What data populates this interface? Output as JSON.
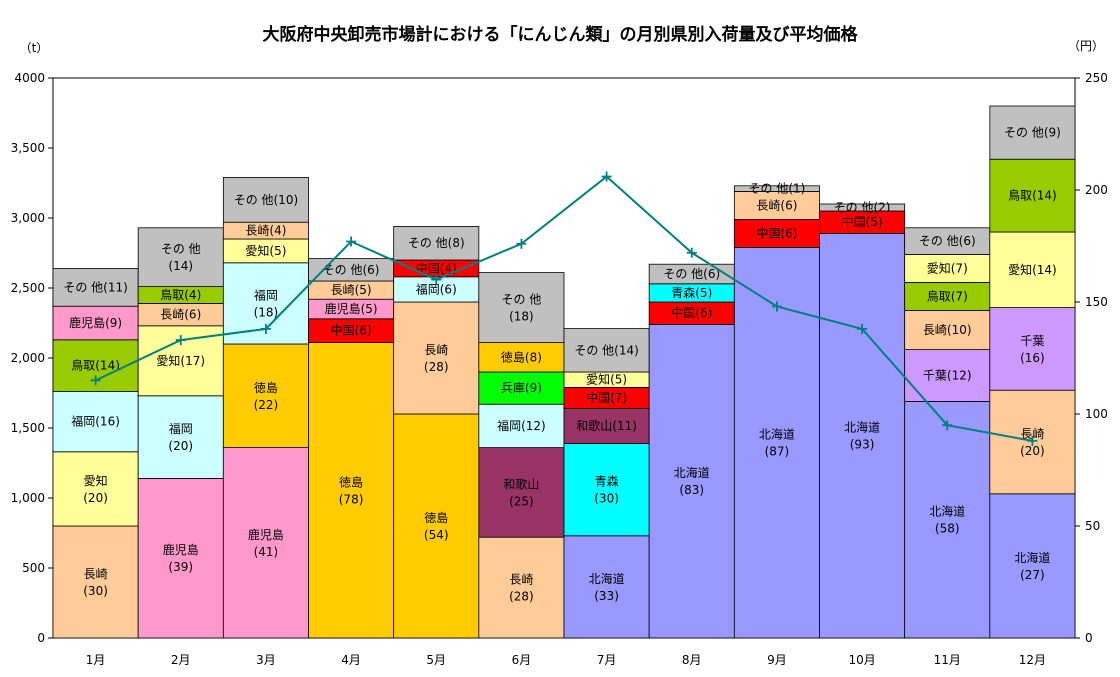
{
  "chart_data": {
    "type": "stacked-bar-with-line",
    "title": "大阪府中央卸売市場計における「にんじん類」の月別県別入荷量及び平均価格",
    "left_unit": "（t）",
    "right_unit": "（円）",
    "ylim_left": [
      0,
      4000
    ],
    "ylim_right": [
      0,
      250
    ],
    "yticks_left": [
      "0",
      "500",
      "1,000",
      "1,500",
      "2,000",
      "2,500",
      "3,000",
      "3,500",
      "4000"
    ],
    "yticks_right": [
      "0",
      "50",
      "100",
      "150",
      "200",
      "250"
    ],
    "months": [
      "1月",
      "2月",
      "3月",
      "4月",
      "5月",
      "6月",
      "7月",
      "8月",
      "9月",
      "10月",
      "11月",
      "12月"
    ],
    "colors": {
      "長崎": "#ffcc99",
      "愛知": "#ffff99",
      "福岡": "#ccffff",
      "鳥取": "#99cc00",
      "鹿児島": "#ff99cc",
      "その他": "#c0c0c0",
      "徳島": "#ffcc00",
      "中国": "#ff0000",
      "和歌山": "#993366",
      "兵庫": "#00ff00",
      "青森": "#00ffff",
      "北海道": "#9999ff",
      "千葉": "#cc99ff",
      "line": "#008080"
    },
    "bars": [
      {
        "segments": [
          {
            "name": "長崎",
            "value": 800,
            "label": "長崎",
            "sub": "(30)"
          },
          {
            "name": "愛知",
            "value": 530,
            "label": "愛知",
            "sub": "(20)"
          },
          {
            "name": "福岡",
            "value": 430,
            "label": "福岡(16)"
          },
          {
            "name": "鳥取",
            "value": 370,
            "label": "鳥取(14)"
          },
          {
            "name": "鹿児島",
            "value": 240,
            "label": "鹿児島(9)"
          },
          {
            "name": "その他",
            "value": 270,
            "label": "その 他(11)"
          }
        ]
      },
      {
        "segments": [
          {
            "name": "鹿児島",
            "value": 1140,
            "label": "鹿児島",
            "sub": "(39)"
          },
          {
            "name": "福岡",
            "value": 590,
            "label": "福岡",
            "sub": "(20)"
          },
          {
            "name": "愛知",
            "value": 500,
            "label": "愛知(17)"
          },
          {
            "name": "長崎",
            "value": 160,
            "label": "長崎(6)"
          },
          {
            "name": "鳥取",
            "value": 120,
            "label": "鳥取(4)"
          },
          {
            "name": "その他",
            "value": 420,
            "label": "その 他",
            "sub": "(14)"
          }
        ]
      },
      {
        "segments": [
          {
            "name": "鹿児島",
            "value": 1360,
            "label": "鹿児島",
            "sub": "(41)"
          },
          {
            "name": "徳島",
            "value": 740,
            "label": "徳島",
            "sub": "(22)"
          },
          {
            "name": "福岡",
            "value": 580,
            "label": "福岡",
            "sub": "(18)"
          },
          {
            "name": "愛知",
            "value": 170,
            "label": "愛知(5)"
          },
          {
            "name": "長崎",
            "value": 120,
            "label": "長崎(4)"
          },
          {
            "name": "その他",
            "value": 320,
            "label": "その 他(10)"
          }
        ]
      },
      {
        "segments": [
          {
            "name": "徳島",
            "value": 2110,
            "label": "徳島",
            "sub": "(78)"
          },
          {
            "name": "中国",
            "value": 170,
            "label": "中国(6)"
          },
          {
            "name": "鹿児島",
            "value": 140,
            "label": "鹿児島(5)"
          },
          {
            "name": "長崎",
            "value": 130,
            "label": "長崎(5)"
          },
          {
            "name": "その他",
            "value": 160,
            "label": "その 他(6)"
          }
        ]
      },
      {
        "segments": [
          {
            "name": "徳島",
            "value": 1600,
            "label": "徳島",
            "sub": "(54)"
          },
          {
            "name": "長崎",
            "value": 800,
            "label": "長崎",
            "sub": "(28)"
          },
          {
            "name": "福岡",
            "value": 180,
            "label": "福岡(6)"
          },
          {
            "name": "中国",
            "value": 120,
            "label": "中国(4)"
          },
          {
            "name": "その他",
            "value": 240,
            "label": "その 他(8)"
          }
        ]
      },
      {
        "segments": [
          {
            "name": "長崎",
            "value": 720,
            "label": "長崎",
            "sub": "(28)"
          },
          {
            "name": "和歌山",
            "value": 640,
            "label": "和歌山",
            "sub": "(25)"
          },
          {
            "name": "福岡",
            "value": 310,
            "label": "福岡(12)"
          },
          {
            "name": "兵庫",
            "value": 230,
            "label": "兵庫(9)"
          },
          {
            "name": "徳島",
            "value": 210,
            "label": "徳島(8)"
          },
          {
            "name": "その他",
            "value": 500,
            "label": "その 他",
            "sub": "(18)"
          }
        ]
      },
      {
        "segments": [
          {
            "name": "北海道",
            "value": 730,
            "label": "北海道",
            "sub": "(33)"
          },
          {
            "name": "青森",
            "value": 660,
            "label": "青森",
            "sub": "(30)"
          },
          {
            "name": "和歌山",
            "value": 250,
            "label": "和歌山(11)"
          },
          {
            "name": "中国",
            "value": 150,
            "label": "中国(7)"
          },
          {
            "name": "愛知",
            "value": 110,
            "label": "愛知(5)"
          },
          {
            "name": "その他",
            "value": 310,
            "label": "その 他(14)"
          }
        ]
      },
      {
        "segments": [
          {
            "name": "北海道",
            "value": 2240,
            "label": "北海道",
            "sub": "(83)"
          },
          {
            "name": "中国",
            "value": 160,
            "label": "中国(6)"
          },
          {
            "name": "青森",
            "value": 130,
            "label": "青森(5)"
          },
          {
            "name": "その他",
            "value": 140,
            "label": "その 他(6)"
          }
        ]
      },
      {
        "segments": [
          {
            "name": "北海道",
            "value": 2790,
            "label": "北海道",
            "sub": "(87)"
          },
          {
            "name": "中国",
            "value": 200,
            "label": "中国(6)"
          },
          {
            "name": "長崎",
            "value": 200,
            "label": "長崎(6)"
          },
          {
            "name": "その他",
            "value": 40,
            "label": "その 他(1)"
          }
        ]
      },
      {
        "segments": [
          {
            "name": "北海道",
            "value": 2890,
            "label": "北海道",
            "sub": "(93)"
          },
          {
            "name": "中国",
            "value": 160,
            "label": "中国(5)"
          },
          {
            "name": "その他",
            "value": 50,
            "label": "その 他(2)"
          }
        ]
      },
      {
        "segments": [
          {
            "name": "北海道",
            "value": 1690,
            "label": "北海道",
            "sub": "(58)"
          },
          {
            "name": "千葉",
            "value": 370,
            "label": "千葉(12)"
          },
          {
            "name": "長崎",
            "value": 280,
            "label": "長崎(10)"
          },
          {
            "name": "鳥取",
            "value": 200,
            "label": "鳥取(7)"
          },
          {
            "name": "愛知",
            "value": 200,
            "label": "愛知(7)"
          },
          {
            "name": "その他",
            "value": 190,
            "label": "その 他(6)"
          }
        ]
      },
      {
        "segments": [
          {
            "name": "北海道",
            "value": 1030,
            "label": "北海道",
            "sub": "(27)"
          },
          {
            "name": "長崎",
            "value": 740,
            "label": "長崎",
            "sub": "(20)"
          },
          {
            "name": "千葉",
            "value": 590,
            "label": "千葉",
            "sub": "(16)"
          },
          {
            "name": "愛知",
            "value": 540,
            "label": "愛知(14)"
          },
          {
            "name": "鳥取",
            "value": 520,
            "label": "鳥取(14)"
          },
          {
            "name": "その他",
            "value": 380,
            "label": "その 他(9)"
          }
        ]
      }
    ],
    "price_line": {
      "name": "平均価格",
      "values": [
        115,
        133,
        138,
        177,
        160,
        176,
        206,
        172,
        148,
        138,
        95,
        88
      ]
    }
  }
}
